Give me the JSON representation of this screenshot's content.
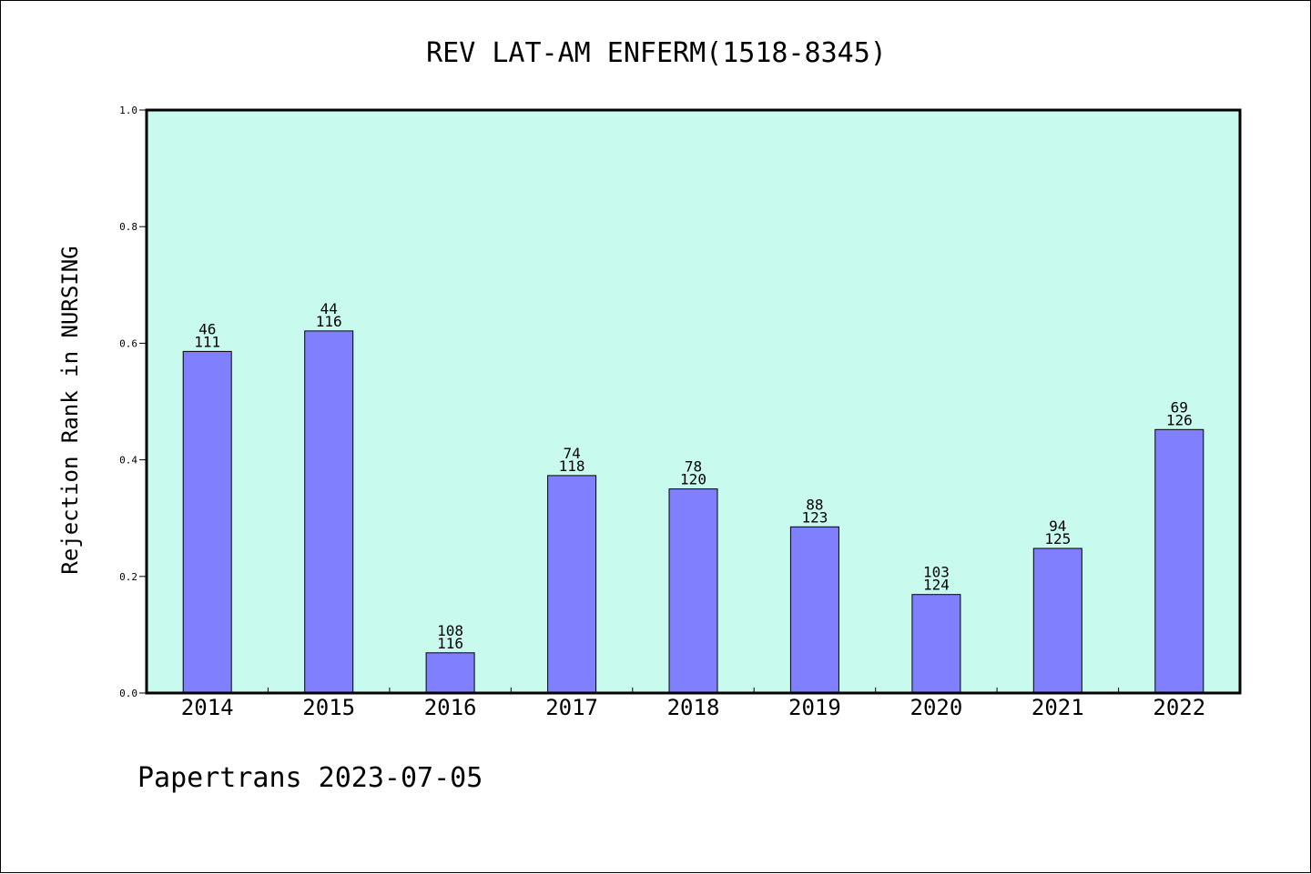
{
  "title": "REV LAT-AM ENFERM(1518-8345)",
  "footer": "Papertrans 2023-07-05",
  "colors": {
    "plot_background": "#c8fbee",
    "bar_fill": "#8080ff",
    "bar_stroke": "#000000",
    "axis": "#000000"
  },
  "chart_data": {
    "type": "bar",
    "title": "REV LAT-AM ENFERM(1518-8345)",
    "xlabel": "",
    "ylabel": "Rejection Rank in NURSING",
    "categories": [
      "2014",
      "2015",
      "2016",
      "2017",
      "2018",
      "2019",
      "2020",
      "2021",
      "2022"
    ],
    "values": [
      0.586,
      0.621,
      0.069,
      0.373,
      0.35,
      0.285,
      0.169,
      0.248,
      0.452
    ],
    "rank_labels": [
      "46",
      "44",
      "108",
      "74",
      "78",
      "88",
      "103",
      "94",
      "69"
    ],
    "total_labels": [
      "111",
      "116",
      "116",
      "118",
      "120",
      "123",
      "124",
      "125",
      "126"
    ],
    "ylim": [
      0,
      1.0
    ],
    "yticks": [
      "0.0",
      "0.2",
      "0.4",
      "0.6",
      "0.8",
      "1.0"
    ],
    "grid": false,
    "legend": "none"
  }
}
